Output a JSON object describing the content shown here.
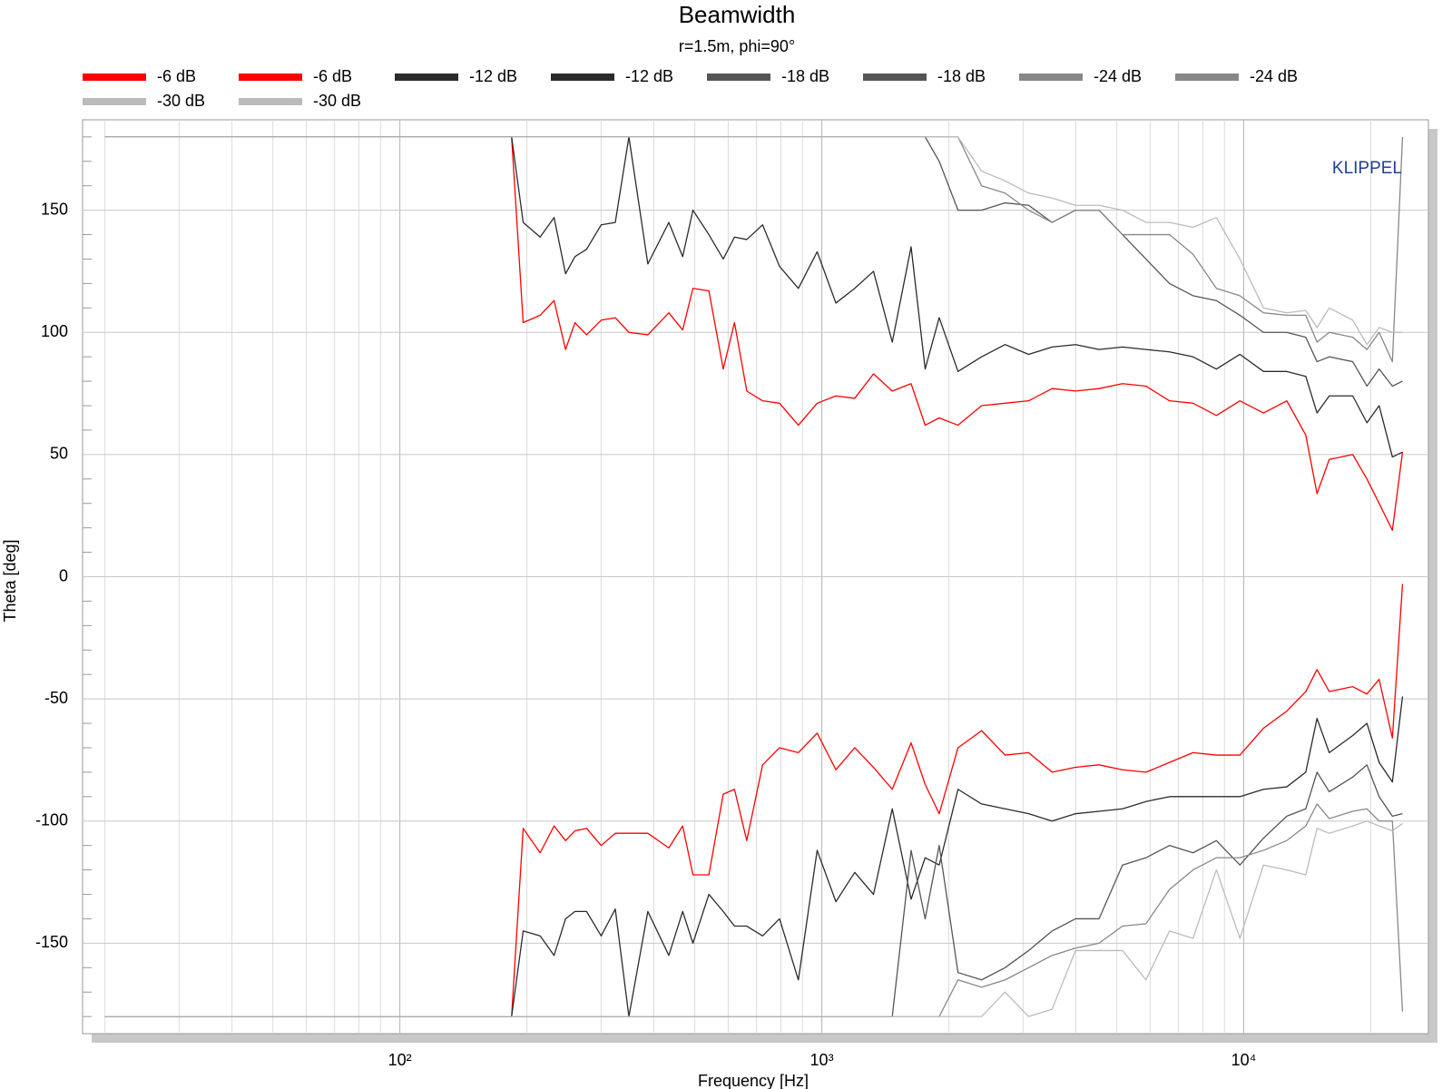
{
  "chart_data": {
    "type": "line",
    "title": "Beamwidth",
    "subtitle": "r=1.5m, phi=90°",
    "x_label": "Frequency [Hz]",
    "y_label": "Theta [deg]",
    "annotation": "KLIPPEL",
    "x_scale": "log",
    "grid": true,
    "xlim": [
      17.7,
      27400
    ],
    "ylim": [
      -187,
      187
    ],
    "xticks": [
      {
        "value": 100,
        "label": "10²"
      },
      {
        "value": 1000,
        "label": "10³"
      },
      {
        "value": 10000,
        "label": "10⁴"
      }
    ],
    "xticks_minor": [
      20,
      30,
      40,
      50,
      60,
      70,
      80,
      90,
      200,
      300,
      400,
      500,
      600,
      700,
      800,
      900,
      2000,
      3000,
      4000,
      5000,
      6000,
      7000,
      8000,
      9000,
      20000
    ],
    "yticks": [
      -150,
      -100,
      -50,
      0,
      50,
      100,
      150
    ],
    "yticks_minor": [
      -180,
      -170,
      -160,
      -140,
      -130,
      -120,
      -110,
      -90,
      -80,
      -70,
      -60,
      -40,
      -30,
      -20,
      -10,
      10,
      20,
      30,
      40,
      60,
      70,
      80,
      90,
      110,
      120,
      130,
      140,
      160,
      170,
      180
    ],
    "x": [
      20,
      184,
      196,
      215,
      232,
      247,
      260,
      277,
      300,
      324,
      349,
      387,
      434,
      468,
      495,
      540,
      584,
      621,
      664,
      724,
      794,
      880,
      975,
      1080,
      1197,
      1326,
      1469,
      1628,
      1758,
      1898,
      2103,
      2392,
      2719,
      3092,
      3515,
      3993,
      4540,
      5161,
      5866,
      6670,
      7582,
      8615,
      9795,
      11140,
      12650,
      14030,
      14920,
      15950,
      18130,
      19590,
      20940,
      22510,
      23790
    ],
    "series": [
      {
        "name": "-6 dB",
        "color": "#ff0000",
        "values": [
          180,
          180,
          104,
          107,
          113,
          93,
          104,
          99,
          105,
          106,
          100,
          99,
          108,
          101,
          118,
          117,
          85,
          104,
          76,
          72,
          71,
          62,
          71,
          74,
          73,
          83,
          76,
          79,
          62,
          65,
          62,
          70,
          71,
          72,
          77,
          76,
          77,
          79,
          78,
          72,
          71,
          66,
          72,
          67,
          72,
          58,
          34,
          48,
          50,
          40,
          30,
          19,
          51
        ]
      },
      {
        "name": "-6 dB",
        "color": "#ff0000",
        "values": [
          -180,
          -180,
          -103,
          -113,
          -102,
          -108,
          -104,
          -103,
          -110,
          -105,
          -105,
          -105,
          -111,
          -102,
          -122,
          -122,
          -89,
          -87,
          -108,
          -77,
          -70,
          -72,
          -64,
          -79,
          -70,
          -78,
          -87,
          -68,
          -85,
          -97,
          -70,
          -63,
          -73,
          -72,
          -80,
          -78,
          -77,
          -79,
          -80,
          -76,
          -72,
          -73,
          -73,
          -62,
          -55,
          -47,
          -38,
          -47,
          -45,
          -48,
          -42,
          -66,
          -3
        ]
      },
      {
        "name": "-12 dB",
        "color": "#2b2b2b",
        "values": [
          180,
          180,
          145,
          139,
          147,
          124,
          131,
          134,
          144,
          145,
          180,
          128,
          145,
          131,
          150,
          140,
          130,
          139,
          138,
          144,
          127,
          118,
          133,
          112,
          118,
          125,
          96,
          135,
          85,
          106,
          84,
          90,
          95,
          91,
          94,
          95,
          93,
          94,
          93,
          92,
          90,
          85,
          91,
          84,
          84,
          82,
          67,
          74,
          74,
          63,
          70,
          49,
          51
        ]
      },
      {
        "name": "-12 dB",
        "color": "#2b2b2b",
        "values": [
          -180,
          -180,
          -145,
          -147,
          -155,
          -140,
          -137,
          -137,
          -147,
          -136,
          -180,
          -137,
          -155,
          -137,
          -150,
          -130,
          -137,
          -143,
          -143,
          -147,
          -140,
          -165,
          -112,
          -133,
          -121,
          -130,
          -95,
          -132,
          -115,
          -118,
          -87,
          -93,
          -95,
          -97,
          -100,
          -97,
          -96,
          -95,
          -92,
          -90,
          -90,
          -90,
          -90,
          -87,
          -86,
          -80,
          -58,
          -72,
          -65,
          -60,
          -76,
          -84,
          -49
        ]
      },
      {
        "name": "-18 dB",
        "color": "#555555",
        "values": [
          180,
          180,
          180,
          180,
          180,
          180,
          180,
          180,
          180,
          180,
          180,
          180,
          180,
          180,
          180,
          180,
          180,
          180,
          180,
          180,
          180,
          180,
          180,
          180,
          180,
          180,
          180,
          180,
          180,
          170,
          150,
          150,
          153,
          152,
          145,
          150,
          150,
          140,
          130,
          120,
          115,
          113,
          107,
          100,
          100,
          98,
          88,
          90,
          88,
          78,
          85,
          78,
          80
        ]
      },
      {
        "name": "-18 dB",
        "color": "#555555",
        "values": [
          -180,
          -180,
          -180,
          -180,
          -180,
          -180,
          -180,
          -180,
          -180,
          -180,
          -180,
          -180,
          -180,
          -180,
          -180,
          -180,
          -180,
          -180,
          -180,
          -180,
          -180,
          -180,
          -180,
          -180,
          -180,
          -180,
          -180,
          -112,
          -140,
          -110,
          -162,
          -165,
          -160,
          -153,
          -145,
          -140,
          -140,
          -118,
          -115,
          -110,
          -113,
          -108,
          -118,
          -107,
          -98,
          -95,
          -80,
          -88,
          -82,
          -77,
          -90,
          -98,
          -97
        ]
      },
      {
        "name": "-24 dB",
        "color": "#888888",
        "values": [
          180,
          180,
          180,
          180,
          180,
          180,
          180,
          180,
          180,
          180,
          180,
          180,
          180,
          180,
          180,
          180,
          180,
          180,
          180,
          180,
          180,
          180,
          180,
          180,
          180,
          180,
          180,
          180,
          180,
          180,
          180,
          160,
          157,
          150,
          145,
          150,
          150,
          140,
          140,
          140,
          132,
          118,
          115,
          108,
          107,
          107,
          96,
          100,
          98,
          93,
          100,
          88,
          180
        ]
      },
      {
        "name": "-24 dB",
        "color": "#888888",
        "values": [
          -180,
          -180,
          -180,
          -180,
          -180,
          -180,
          -180,
          -180,
          -180,
          -180,
          -180,
          -180,
          -180,
          -180,
          -180,
          -180,
          -180,
          -180,
          -180,
          -180,
          -180,
          -180,
          -180,
          -180,
          -180,
          -180,
          -180,
          -180,
          -180,
          -180,
          -165,
          -168,
          -165,
          -160,
          -155,
          -152,
          -150,
          -143,
          -142,
          -128,
          -120,
          -115,
          -115,
          -112,
          -108,
          -102,
          -93,
          -99,
          -96,
          -95,
          -100,
          -100,
          -178
        ]
      },
      {
        "name": "-30 dB",
        "color": "#bbbbbb",
        "values": [
          180,
          180,
          180,
          180,
          180,
          180,
          180,
          180,
          180,
          180,
          180,
          180,
          180,
          180,
          180,
          180,
          180,
          180,
          180,
          180,
          180,
          180,
          180,
          180,
          180,
          180,
          180,
          180,
          180,
          180,
          180,
          166,
          162,
          157,
          155,
          152,
          152,
          150,
          145,
          145,
          143,
          147,
          130,
          110,
          108,
          109,
          102,
          110,
          105,
          95,
          102,
          100,
          100
        ]
      },
      {
        "name": "-30 dB",
        "color": "#bbbbbb",
        "values": [
          -180,
          -180,
          -180,
          -180,
          -180,
          -180,
          -180,
          -180,
          -180,
          -180,
          -180,
          -180,
          -180,
          -180,
          -180,
          -180,
          -180,
          -180,
          -180,
          -180,
          -180,
          -180,
          -180,
          -180,
          -180,
          -180,
          -180,
          -180,
          -180,
          -180,
          -180,
          -180,
          -170,
          -180,
          -177,
          -153,
          -153,
          -153,
          -165,
          -145,
          -148,
          -120,
          -148,
          -118,
          -120,
          -122,
          -103,
          -105,
          -102,
          -100,
          -102,
          -104,
          -101
        ]
      }
    ]
  }
}
